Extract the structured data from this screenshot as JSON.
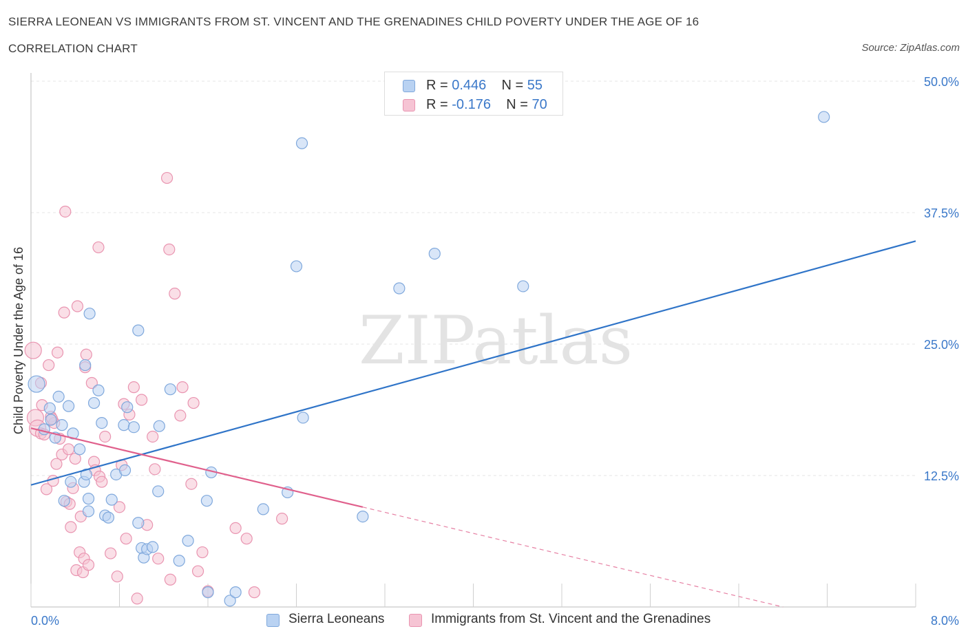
{
  "header": {
    "title": "SIERRA LEONEAN VS IMMIGRANTS FROM ST. VINCENT AND THE GRENADINES CHILD POVERTY UNDER THE AGE OF 16",
    "subtitle": "CORRELATION CHART",
    "source": "Source: ZipAtlas.com"
  },
  "legend_top": {
    "rows": [
      {
        "r_label": "R = ",
        "r_value": "0.446",
        "n_label": "N = ",
        "n_value": "55"
      },
      {
        "r_label": "R = ",
        "r_value": "-0.176",
        "n_label": "N = ",
        "n_value": "70"
      }
    ]
  },
  "legend_bottom": {
    "items": [
      "Sierra Leoneans",
      "Immigrants from St. Vincent and the Grenadines"
    ]
  },
  "colors": {
    "blue_fill": "#b9d2f2",
    "blue_stroke": "#7fa8dc",
    "blue_line": "#2f74c8",
    "pink_fill": "#f6c4d4",
    "pink_stroke": "#e994b0",
    "pink_line": "#e0608c",
    "grid": "#e6e6e6",
    "tick_label": "#3a78c9"
  },
  "chart_data": {
    "type": "scatter",
    "watermark": "ZIPatlas",
    "xlabel": "",
    "ylabel": "Child Poverty Under the Age of 16",
    "xlim": [
      0,
      8
    ],
    "ylim": [
      0,
      50
    ],
    "x_tick_labels": [
      {
        "value": 0,
        "label": "0.0%"
      },
      {
        "value": 8,
        "label": "8.0%"
      }
    ],
    "y_tick_labels": [
      {
        "value": 12.5,
        "label": "12.5%"
      },
      {
        "value": 25,
        "label": "25.0%"
      },
      {
        "value": 37.5,
        "label": "37.5%"
      },
      {
        "value": 50,
        "label": "50.0%"
      }
    ],
    "grid": true,
    "legend_position": "top-center",
    "series": [
      {
        "name": "Sierra Leoneans",
        "color": "blue",
        "points": [
          [
            0.05,
            21.2
          ],
          [
            0.12,
            16.9
          ],
          [
            0.17,
            18.9
          ],
          [
            0.18,
            17.8
          ],
          [
            0.22,
            16.1
          ],
          [
            0.28,
            17.3
          ],
          [
            0.34,
            19.1
          ],
          [
            0.44,
            15.0
          ],
          [
            0.38,
            16.5
          ],
          [
            0.3,
            10.1
          ],
          [
            0.36,
            11.9
          ],
          [
            0.48,
            11.9
          ],
          [
            0.5,
            12.6
          ],
          [
            0.52,
            10.3
          ],
          [
            0.52,
            9.1
          ],
          [
            0.53,
            27.9
          ],
          [
            0.49,
            23.0
          ],
          [
            0.57,
            19.4
          ],
          [
            0.61,
            20.6
          ],
          [
            0.64,
            17.5
          ],
          [
            0.67,
            8.7
          ],
          [
            0.7,
            8.5
          ],
          [
            0.73,
            10.2
          ],
          [
            0.77,
            12.6
          ],
          [
            0.84,
            17.3
          ],
          [
            0.87,
            19.0
          ],
          [
            0.93,
            17.1
          ],
          [
            0.97,
            8.0
          ],
          [
            0.97,
            26.3
          ],
          [
            1.0,
            5.6
          ],
          [
            1.02,
            4.7
          ],
          [
            1.05,
            5.5
          ],
          [
            1.1,
            5.7
          ],
          [
            1.15,
            11.0
          ],
          [
            1.16,
            17.2
          ],
          [
            1.26,
            20.7
          ],
          [
            1.34,
            4.4
          ],
          [
            1.42,
            6.3
          ],
          [
            1.59,
            10.1
          ],
          [
            1.63,
            12.8
          ],
          [
            1.8,
            0.6
          ],
          [
            1.85,
            1.4
          ],
          [
            2.1,
            9.3
          ],
          [
            2.32,
            10.9
          ],
          [
            2.4,
            32.4
          ],
          [
            2.45,
            44.1
          ],
          [
            2.46,
            18.0
          ],
          [
            3.0,
            8.6
          ],
          [
            3.33,
            30.3
          ],
          [
            3.65,
            33.6
          ],
          [
            4.45,
            30.5
          ],
          [
            7.17,
            46.6
          ],
          [
            0.85,
            13.0
          ],
          [
            0.25,
            20.0
          ],
          [
            1.6,
            1.4
          ]
        ]
      },
      {
        "name": "Immigrants from St. Vincent and the Grenadines",
        "color": "pink",
        "points": [
          [
            0.02,
            24.4
          ],
          [
            0.04,
            18.0
          ],
          [
            0.06,
            17.0
          ],
          [
            0.09,
            16.5
          ],
          [
            0.1,
            19.2
          ],
          [
            0.12,
            16.4
          ],
          [
            0.14,
            11.2
          ],
          [
            0.16,
            23.0
          ],
          [
            0.18,
            18.1
          ],
          [
            0.2,
            12.0
          ],
          [
            0.21,
            17.5
          ],
          [
            0.23,
            13.6
          ],
          [
            0.24,
            24.2
          ],
          [
            0.26,
            16.0
          ],
          [
            0.28,
            14.5
          ],
          [
            0.3,
            28.0
          ],
          [
            0.31,
            37.6
          ],
          [
            0.32,
            10.0
          ],
          [
            0.34,
            15.0
          ],
          [
            0.36,
            7.6
          ],
          [
            0.38,
            11.3
          ],
          [
            0.4,
            14.1
          ],
          [
            0.41,
            3.5
          ],
          [
            0.42,
            28.6
          ],
          [
            0.44,
            5.2
          ],
          [
            0.45,
            8.6
          ],
          [
            0.47,
            3.3
          ],
          [
            0.48,
            4.6
          ],
          [
            0.49,
            22.8
          ],
          [
            0.5,
            24.0
          ],
          [
            0.52,
            4.0
          ],
          [
            0.55,
            21.3
          ],
          [
            0.57,
            13.8
          ],
          [
            0.58,
            13.0
          ],
          [
            0.61,
            34.2
          ],
          [
            0.62,
            12.4
          ],
          [
            0.64,
            11.9
          ],
          [
            0.67,
            16.2
          ],
          [
            0.72,
            5.1
          ],
          [
            0.78,
            2.9
          ],
          [
            0.8,
            9.5
          ],
          [
            0.82,
            13.5
          ],
          [
            0.84,
            19.3
          ],
          [
            0.86,
            6.5
          ],
          [
            0.89,
            18.3
          ],
          [
            0.93,
            20.9
          ],
          [
            0.96,
            0.8
          ],
          [
            1.0,
            19.7
          ],
          [
            1.05,
            7.8
          ],
          [
            1.1,
            16.2
          ],
          [
            1.12,
            13.1
          ],
          [
            1.15,
            4.6
          ],
          [
            1.23,
            40.8
          ],
          [
            1.25,
            34.0
          ],
          [
            1.26,
            2.6
          ],
          [
            1.3,
            29.8
          ],
          [
            1.35,
            18.2
          ],
          [
            1.37,
            20.9
          ],
          [
            1.45,
            11.7
          ],
          [
            1.47,
            19.4
          ],
          [
            1.51,
            3.4
          ],
          [
            1.55,
            5.2
          ],
          [
            1.6,
            1.5
          ],
          [
            1.85,
            7.5
          ],
          [
            1.95,
            6.5
          ],
          [
            2.02,
            1.4
          ],
          [
            2.27,
            8.4
          ],
          [
            0.09,
            21.3
          ],
          [
            0.19,
            17.9
          ],
          [
            0.35,
            9.8
          ]
        ]
      }
    ],
    "trend_lines": [
      {
        "series": "Sierra Leoneans",
        "x0": 0,
        "y0": 11.6,
        "x1": 8,
        "y1": 34.8,
        "dashed_from": null
      },
      {
        "series": "Immigrants from St. Vincent and the Grenadines",
        "x0": 0,
        "y0": 17.0,
        "x1": 8,
        "y1": -3.0,
        "solid_until": 3.0
      }
    ]
  }
}
